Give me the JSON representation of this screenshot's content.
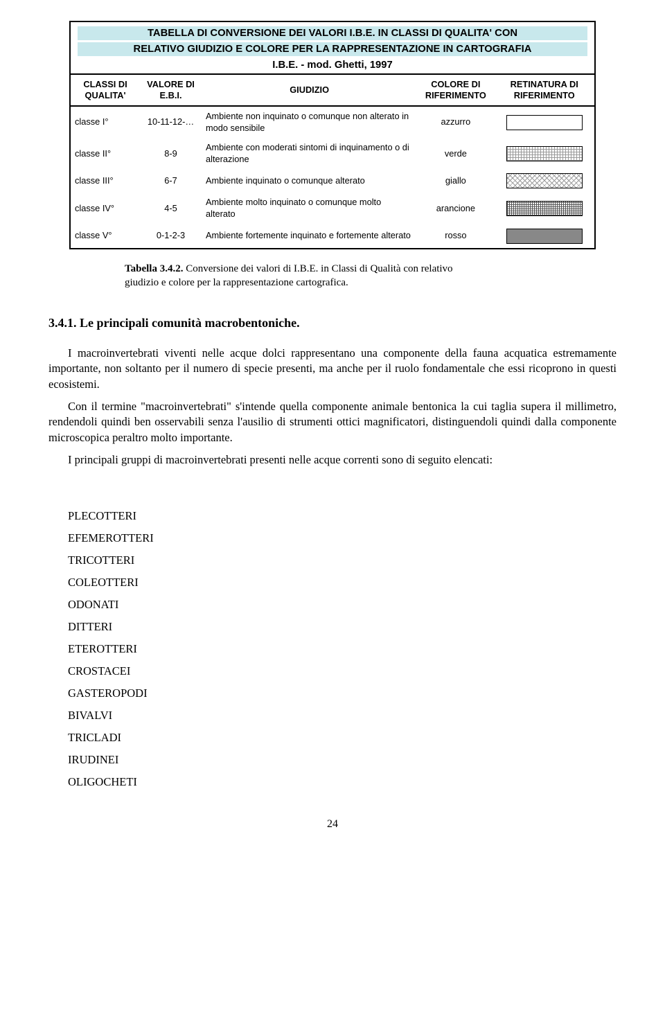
{
  "table": {
    "title_line1": "TABELLA DI CONVERSIONE DEI VALORI I.B.E. IN CLASSI DI QUALITA' CON",
    "title_line2": "RELATIVO GIUDIZIO E COLORE PER LA RAPPRESENTAZIONE IN CARTOGRAFIA",
    "title_line3": "I.B.E. - mod. Ghetti, 1997",
    "headers": {
      "classe": "CLASSI DI QUALITA'",
      "valore": "VALORE DI E.B.I.",
      "giudizio": "GIUDIZIO",
      "colore": "COLORE DI RIFERIMENTO",
      "retinatura": "RETINATURA DI RIFERIMENTO"
    },
    "rows": [
      {
        "classe": "classe I°",
        "valore": "10-11-12-…",
        "giudizio": "Ambiente non inquinato o comunque non alterato in modo sensibile",
        "colore": "azzurro",
        "swatch": "sw-blank"
      },
      {
        "classe": "classe II°",
        "valore": "8-9",
        "giudizio": "Ambiente con moderati sintomi di inquinamento o di alterazione",
        "colore": "verde",
        "swatch": "sw-cross"
      },
      {
        "classe": "classe III°",
        "valore": "6-7",
        "giudizio": "Ambiente inquinato o comunque alterato",
        "colore": "giallo",
        "swatch": "sw-diag"
      },
      {
        "classe": "classe IV°",
        "valore": "4-5",
        "giudizio": "Ambiente molto inquinato o comunque molto alterato",
        "colore": "arancione",
        "swatch": "sw-dense"
      },
      {
        "classe": "classe V°",
        "valore": "0-1-2-3",
        "giudizio": "Ambiente fortemente inquinato e fortemente alterato",
        "colore": "rosso",
        "swatch": "sw-solid"
      }
    ],
    "title_bg_color": "#c8e8ec"
  },
  "caption": {
    "bold": "Tabella 3.4.2.",
    "rest1": " Conversione dei valori di I.B.E. in Classi di Qualità con relativo",
    "rest2": "giudizio e colore per la rappresentazione cartografica."
  },
  "section_title": "3.4.1.   Le principali comunità macrobentoniche.",
  "paragraphs": {
    "p1": "I macroinvertebrati viventi nelle acque dolci rappresentano una componente della fauna acquatica estremamente importante, non soltanto per il numero di specie presenti, ma anche per il ruolo fondamentale che essi ricoprono in questi ecosistemi.",
    "p2": "Con il termine \"macroinvertebrati\" s'intende quella componente animale bentonica la cui taglia supera il millimetro, rendendoli quindi ben osservabili senza l'ausilio di strumenti ottici magnificatori, distinguendoli quindi dalla componente microscopica peraltro molto importante.",
    "p3": "I principali gruppi di macroinvertebrati presenti nelle acque correnti sono di seguito elencati:"
  },
  "groups": [
    "PLECOTTERI",
    "EFEMEROTTERI",
    "TRICOTTERI",
    "COLEOTTERI",
    "ODONATI",
    "DITTERI",
    "ETEROTTERI",
    "CROSTACEI",
    "GASTEROPODI",
    "BIVALVI",
    "TRICLADI",
    "IRUDINEI",
    "OLIGOCHETI"
  ],
  "page_number": "24"
}
